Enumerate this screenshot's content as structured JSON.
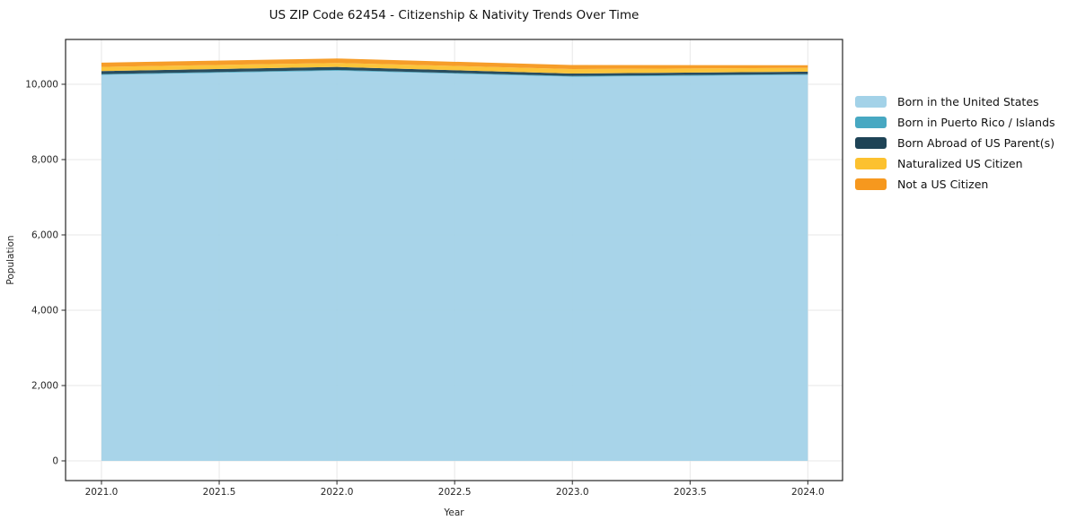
{
  "title": "US ZIP Code 62454 - Citizenship & Nativity Trends Over Time",
  "axes": {
    "xlabel": "Year",
    "ylabel": "Population"
  },
  "chart_data": {
    "type": "area",
    "stacked": true,
    "title": "US ZIP Code 62454 - Citizenship & Nativity Trends Over Time",
    "xlabel": "Year",
    "ylabel": "Population",
    "x": [
      2021,
      2022,
      2023,
      2024
    ],
    "series": [
      {
        "name": "Born in the United States",
        "color": "#a3d2e8",
        "values": [
          10250,
          10360,
          10200,
          10250
        ]
      },
      {
        "name": "Born in Puerto Rico / Islands",
        "color": "#47a8c2",
        "values": [
          20,
          20,
          20,
          20
        ]
      },
      {
        "name": "Born Abroad of US Parent(s)",
        "color": "#1e4356",
        "values": [
          80,
          80,
          65,
          65
        ]
      },
      {
        "name": "Naturalized US Citizen",
        "color": "#fcc12f",
        "values": [
          110,
          105,
          120,
          100
        ]
      },
      {
        "name": "Not a US Citizen",
        "color": "#f6981e",
        "values": [
          115,
          120,
          105,
          70
        ]
      }
    ],
    "x_ticks": [
      2021.0,
      2021.5,
      2022.0,
      2022.5,
      2023.0,
      2023.5,
      2024.0
    ],
    "x_tick_labels": [
      "2021.0",
      "2021.5",
      "2022.0",
      "2022.5",
      "2023.0",
      "2023.5",
      "2024.0"
    ],
    "y_ticks": [
      0,
      2000,
      4000,
      6000,
      8000,
      10000
    ],
    "y_tick_labels": [
      "0",
      "2,000",
      "4,000",
      "6,000",
      "8,000",
      "10,000"
    ],
    "xlim": [
      2020.8475,
      2024.1475
    ],
    "ylim": [
      -524,
      11190
    ],
    "grid": true,
    "legend_position": "right",
    "colors": {
      "grid": "#e7e7e7",
      "spine": "#262626",
      "tick_text": "#262626",
      "background": "#ffffff"
    }
  }
}
